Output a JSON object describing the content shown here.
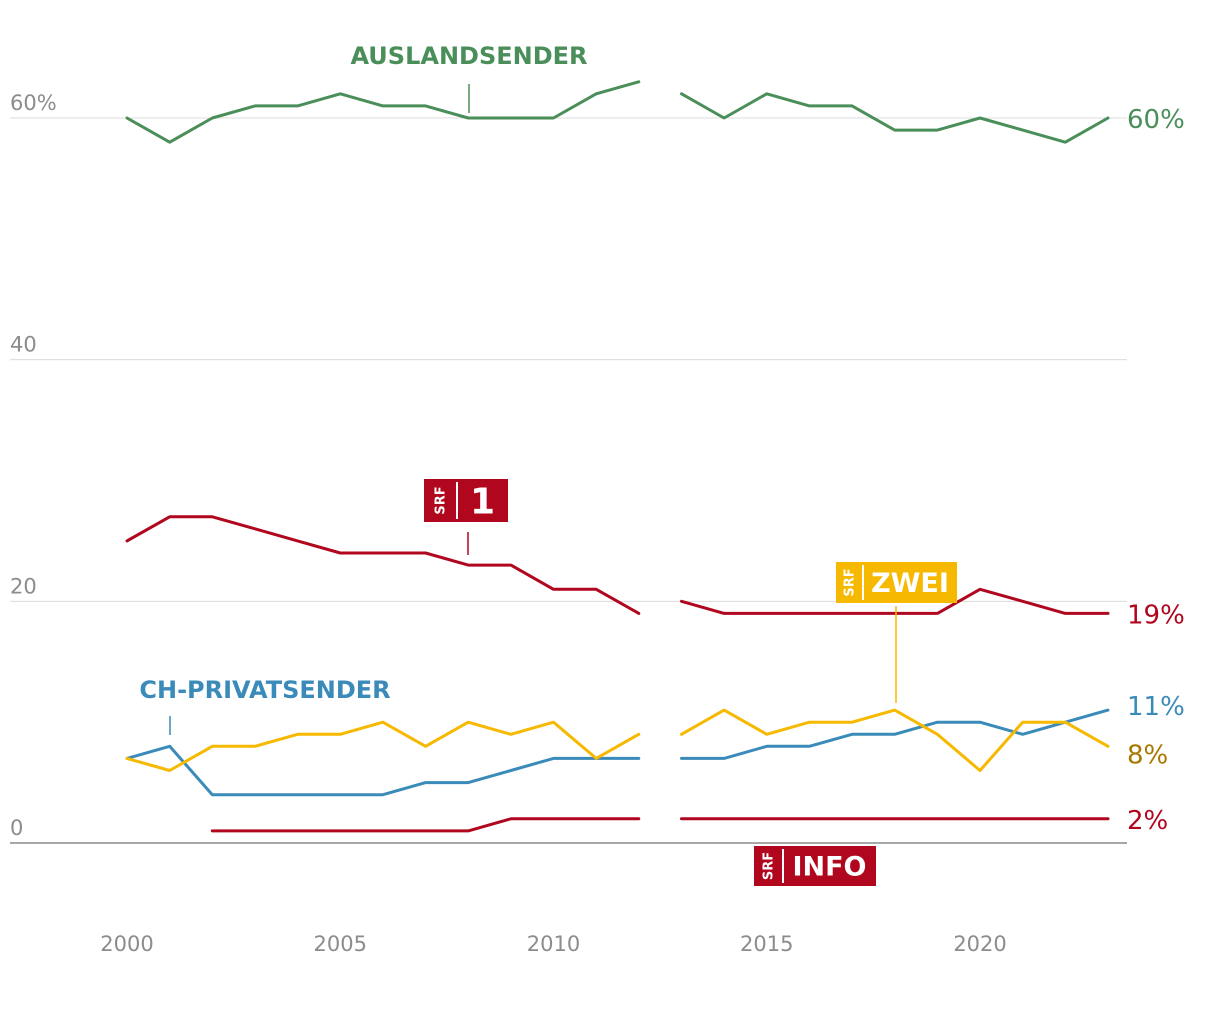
{
  "chart_data": {
    "type": "line",
    "title": "",
    "xlabel": "",
    "ylabel": "",
    "xlim": [
      2000,
      2023
    ],
    "ylim": [
      0,
      60
    ],
    "x_ticks": [
      2000,
      2005,
      2010,
      2015,
      2020
    ],
    "y_ticks": [
      {
        "value": 0,
        "label": "0"
      },
      {
        "value": 20,
        "label": "20"
      },
      {
        "value": 40,
        "label": "40"
      },
      {
        "value": 60,
        "label": "60%"
      }
    ],
    "gap_between": [
      2012,
      2013
    ],
    "series": [
      {
        "id": "ausland",
        "name": "AUSLANDSENDER",
        "color": "#4a8f5a",
        "end_label": "60%",
        "points": [
          [
            2000,
            60
          ],
          [
            2001,
            58
          ],
          [
            2002,
            60
          ],
          [
            2003,
            61
          ],
          [
            2004,
            61
          ],
          [
            2005,
            62
          ],
          [
            2006,
            61
          ],
          [
            2007,
            61
          ],
          [
            2008,
            60
          ],
          [
            2009,
            60
          ],
          [
            2010,
            60
          ],
          [
            2011,
            62
          ],
          [
            2012,
            63
          ],
          [
            2013,
            62
          ],
          [
            2014,
            60
          ],
          [
            2015,
            62
          ],
          [
            2016,
            61
          ],
          [
            2017,
            61
          ],
          [
            2018,
            59
          ],
          [
            2019,
            59
          ],
          [
            2020,
            60
          ],
          [
            2021,
            59
          ],
          [
            2022,
            58
          ],
          [
            2023,
            60
          ]
        ]
      },
      {
        "id": "srf1",
        "name": "SRF 1",
        "logo_text": "1",
        "logo_srf": "SRF",
        "color": "#b0071f",
        "end_label": "19%",
        "points": [
          [
            2000,
            25
          ],
          [
            2001,
            27
          ],
          [
            2002,
            27
          ],
          [
            2003,
            26
          ],
          [
            2004,
            25
          ],
          [
            2005,
            24
          ],
          [
            2006,
            24
          ],
          [
            2007,
            24
          ],
          [
            2008,
            23
          ],
          [
            2009,
            23
          ],
          [
            2010,
            21
          ],
          [
            2011,
            21
          ],
          [
            2012,
            19
          ],
          [
            2013,
            20
          ],
          [
            2014,
            19
          ],
          [
            2015,
            19
          ],
          [
            2016,
            19
          ],
          [
            2017,
            19
          ],
          [
            2018,
            19
          ],
          [
            2019,
            19
          ],
          [
            2020,
            21
          ],
          [
            2021,
            20
          ],
          [
            2022,
            19
          ],
          [
            2023,
            19
          ]
        ]
      },
      {
        "id": "privat",
        "name": "CH-PRIVATSENDER",
        "color": "#3a8bb9",
        "end_label": "11%",
        "points": [
          [
            2000,
            7
          ],
          [
            2001,
            8
          ],
          [
            2002,
            4
          ],
          [
            2003,
            4
          ],
          [
            2004,
            4
          ],
          [
            2005,
            4
          ],
          [
            2006,
            4
          ],
          [
            2007,
            5
          ],
          [
            2008,
            5
          ],
          [
            2009,
            6
          ],
          [
            2010,
            7
          ],
          [
            2011,
            7
          ],
          [
            2012,
            7
          ],
          [
            2013,
            7
          ],
          [
            2014,
            7
          ],
          [
            2015,
            8
          ],
          [
            2016,
            8
          ],
          [
            2017,
            9
          ],
          [
            2018,
            9
          ],
          [
            2019,
            10
          ],
          [
            2020,
            10
          ],
          [
            2021,
            9
          ],
          [
            2022,
            10
          ],
          [
            2023,
            11
          ]
        ]
      },
      {
        "id": "srfzwei",
        "name": "SRF zwei",
        "logo_text": "ZWEI",
        "logo_srf": "SRF",
        "color": "#f7b800",
        "label_color": "#a87800",
        "end_label": "8%",
        "points": [
          [
            2000,
            7
          ],
          [
            2001,
            6
          ],
          [
            2002,
            8
          ],
          [
            2003,
            8
          ],
          [
            2004,
            9
          ],
          [
            2005,
            9
          ],
          [
            2006,
            10
          ],
          [
            2007,
            8
          ],
          [
            2008,
            10
          ],
          [
            2009,
            9
          ],
          [
            2010,
            10
          ],
          [
            2011,
            7
          ],
          [
            2012,
            9
          ],
          [
            2013,
            9
          ],
          [
            2014,
            11
          ],
          [
            2015,
            9
          ],
          [
            2016,
            10
          ],
          [
            2017,
            10
          ],
          [
            2018,
            11
          ],
          [
            2019,
            9
          ],
          [
            2020,
            6
          ],
          [
            2021,
            10
          ],
          [
            2022,
            10
          ],
          [
            2023,
            8
          ]
        ]
      },
      {
        "id": "srfinfo",
        "name": "SRF info",
        "logo_text": "INFO",
        "logo_srf": "SRF",
        "color": "#b0071f",
        "end_label": "2%",
        "points": [
          [
            2002,
            1
          ],
          [
            2003,
            1
          ],
          [
            2004,
            1
          ],
          [
            2005,
            1
          ],
          [
            2006,
            1
          ],
          [
            2007,
            1
          ],
          [
            2008,
            1
          ],
          [
            2009,
            2
          ],
          [
            2010,
            2
          ],
          [
            2011,
            2
          ],
          [
            2012,
            2
          ],
          [
            2013,
            2
          ],
          [
            2014,
            2
          ],
          [
            2015,
            2
          ],
          [
            2016,
            2
          ],
          [
            2017,
            2
          ],
          [
            2018,
            2
          ],
          [
            2019,
            2
          ],
          [
            2020,
            2
          ],
          [
            2021,
            2
          ],
          [
            2022,
            2
          ],
          [
            2023,
            2
          ]
        ]
      }
    ]
  }
}
